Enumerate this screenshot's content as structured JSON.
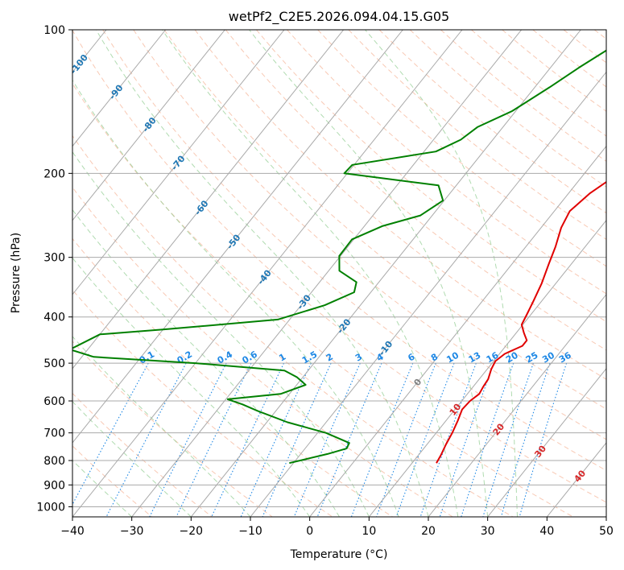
{
  "chart_data": {
    "type": "line",
    "title": "wetPf2_C2E5.2026.094.04.15.G05",
    "xlabel": "Temperature (°C)",
    "ylabel": "Pressure (hPa)",
    "xlim": [
      -40,
      50
    ],
    "ylim": [
      1050,
      100
    ],
    "y_scale": "log",
    "grid": true,
    "x_ticks": [
      "−40",
      "−30",
      "−20",
      "−10",
      "0",
      "10",
      "20",
      "30",
      "40",
      "50"
    ],
    "x_tick_values": [
      -40,
      -30,
      -20,
      -10,
      0,
      10,
      20,
      30,
      40,
      50
    ],
    "y_ticks": [
      "100",
      "200",
      "300",
      "400",
      "500",
      "600",
      "700",
      "800",
      "900",
      "1000"
    ],
    "y_tick_values": [
      100,
      200,
      300,
      400,
      500,
      600,
      700,
      800,
      900,
      1000
    ],
    "skew": 0.8,
    "colors": {
      "temperature": "#e00000",
      "dewpoint": "#008000",
      "isotherm": "#a9a9a9",
      "dry_adiabat": "#f4a582",
      "moist_adiabat": "#8fcc8f",
      "mixing_ratio": "#1e88e5",
      "iso_label_blue": "#1f77b4",
      "iso_label_red": "#d62728",
      "iso_label_gray": "#808080",
      "mixing_label": "#1e88e5"
    },
    "series": [
      {
        "name": "",
        "role": "temperature",
        "points": [
          [
            10.8,
            100
          ],
          [
            8.8,
            105
          ],
          [
            7.5,
            112
          ],
          [
            7.2,
            122
          ],
          [
            7.0,
            138
          ],
          [
            7.3,
            158
          ],
          [
            7.1,
            178
          ],
          [
            5.8,
            200
          ],
          [
            3.6,
            220
          ],
          [
            2.6,
            240
          ],
          [
            3.4,
            260
          ],
          [
            5.0,
            285
          ],
          [
            6.2,
            310
          ],
          [
            7.6,
            340
          ],
          [
            8.6,
            370
          ],
          [
            9.3,
            395
          ],
          [
            9.8,
            415
          ],
          [
            11.3,
            432
          ],
          [
            12.8,
            448
          ],
          [
            12.8,
            460
          ],
          [
            10.9,
            478
          ],
          [
            10.3,
            495
          ],
          [
            10.7,
            515
          ],
          [
            11.5,
            540
          ],
          [
            11.7,
            560
          ],
          [
            12.0,
            580
          ],
          [
            11.4,
            600
          ],
          [
            11.2,
            625
          ],
          [
            12.0,
            660
          ],
          [
            12.7,
            700
          ],
          [
            13.2,
            740
          ],
          [
            13.8,
            780
          ],
          [
            14.1,
            810
          ]
        ]
      },
      {
        "name": "",
        "role": "dewpoint",
        "points": [
          [
            -10.7,
            100
          ],
          [
            -12.8,
            110
          ],
          [
            -15.2,
            120
          ],
          [
            -17.5,
            132
          ],
          [
            -20.6,
            148
          ],
          [
            -24.3,
            160
          ],
          [
            -25.4,
            170
          ],
          [
            -28.0,
            180
          ],
          [
            -40.3,
            192
          ],
          [
            -40.5,
            200
          ],
          [
            -23.0,
            212
          ],
          [
            -20.2,
            228
          ],
          [
            -22.0,
            245
          ],
          [
            -27.0,
            258
          ],
          [
            -30.3,
            275
          ],
          [
            -30.2,
            298
          ],
          [
            -28.2,
            320
          ],
          [
            -23.8,
            338
          ],
          [
            -22.8,
            355
          ],
          [
            -26.0,
            378
          ],
          [
            -32.0,
            405
          ],
          [
            -50.0,
            425
          ],
          [
            -60.0,
            435
          ],
          [
            -63.0,
            468
          ],
          [
            -58.0,
            485
          ],
          [
            -40.0,
            500
          ],
          [
            -24.0,
            518
          ],
          [
            -21.0,
            535
          ],
          [
            -18.5,
            555
          ],
          [
            -21.5,
            580
          ],
          [
            -29.7,
            595
          ],
          [
            -26.5,
            610
          ],
          [
            -23.0,
            630
          ],
          [
            -16.5,
            665
          ],
          [
            -8.6,
            700
          ],
          [
            -3.3,
            735
          ],
          [
            -3.0,
            755
          ],
          [
            -5.5,
            775
          ],
          [
            -10.7,
            810
          ]
        ]
      }
    ],
    "isotherm_labels": [
      "-100",
      "-90",
      "-80",
      "-70",
      "-60",
      "-50",
      "-40",
      "-30",
      "-20",
      "-10",
      "0",
      "10",
      "20",
      "30",
      "40"
    ],
    "isotherm_label_values": [
      -100,
      -90,
      -80,
      -70,
      -60,
      -50,
      -40,
      -30,
      -20,
      -10,
      0,
      10,
      20,
      30,
      40
    ],
    "mixing_ratio_labels": [
      "0.1",
      "0.2",
      "0.4",
      "0.6",
      "1",
      "1.5",
      "2",
      "3",
      "4",
      "6",
      "8",
      "10",
      "13",
      "16",
      "20",
      "25",
      "30",
      "36"
    ],
    "mixing_ratio_values": [
      0.1,
      0.2,
      0.4,
      0.6,
      1,
      1.5,
      2,
      3,
      4,
      6,
      8,
      10,
      13,
      16,
      20,
      25,
      30,
      36
    ]
  }
}
